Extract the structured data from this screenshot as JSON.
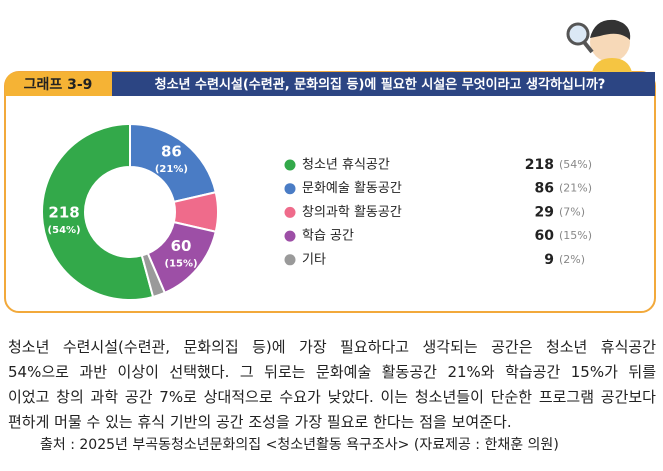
{
  "chart_data": {
    "type": "donut",
    "tag": "그래프 3-9",
    "title": "청소년 수련시설(수련관, 문화의집 등)에 필요한 시설은 무엇이라고 생각하십니까?",
    "categories": [
      "청소년 휴식공간",
      "문화예술 활동공간",
      "창의과학 활동공간",
      "학습 공간",
      "기타"
    ],
    "values": [
      218,
      86,
      29,
      60,
      9
    ],
    "percent_labels": [
      "(54%)",
      "(21%)",
      "(7%)",
      "(15%)",
      "(2%)"
    ],
    "colors": [
      "#33a94a",
      "#4a7cc5",
      "#ef6b8b",
      "#9d4fa6",
      "#9a9a9a"
    ],
    "slice_labels": [
      true,
      true,
      false,
      true,
      false
    ]
  },
  "paragraph": [
    "청소년 수련시설(수련관, 문화의집 등)에 가장 필요하다고 생각되는 공간은 청소년 휴식공간",
    "54%으로 과반 이상이 선택했다. 그 뒤로는 문화예술 활동공간 21%와 학습공간 15%가 뒤를",
    "이었고 창의 과학 공간 7%로 상대적으로 수요가 낮았다. 이는 청소년들이 단순한 프로그램 공간보다",
    "편하게 머물 수 있는 휴식 기반의 공간 조성을 가장 필요로 한다는 점을 보여준다."
  ],
  "source": "출처 : 2025년 부곡동청소년문화의집 <청소년활동 욕구조사> (자료제공 : 한채훈 의원)"
}
